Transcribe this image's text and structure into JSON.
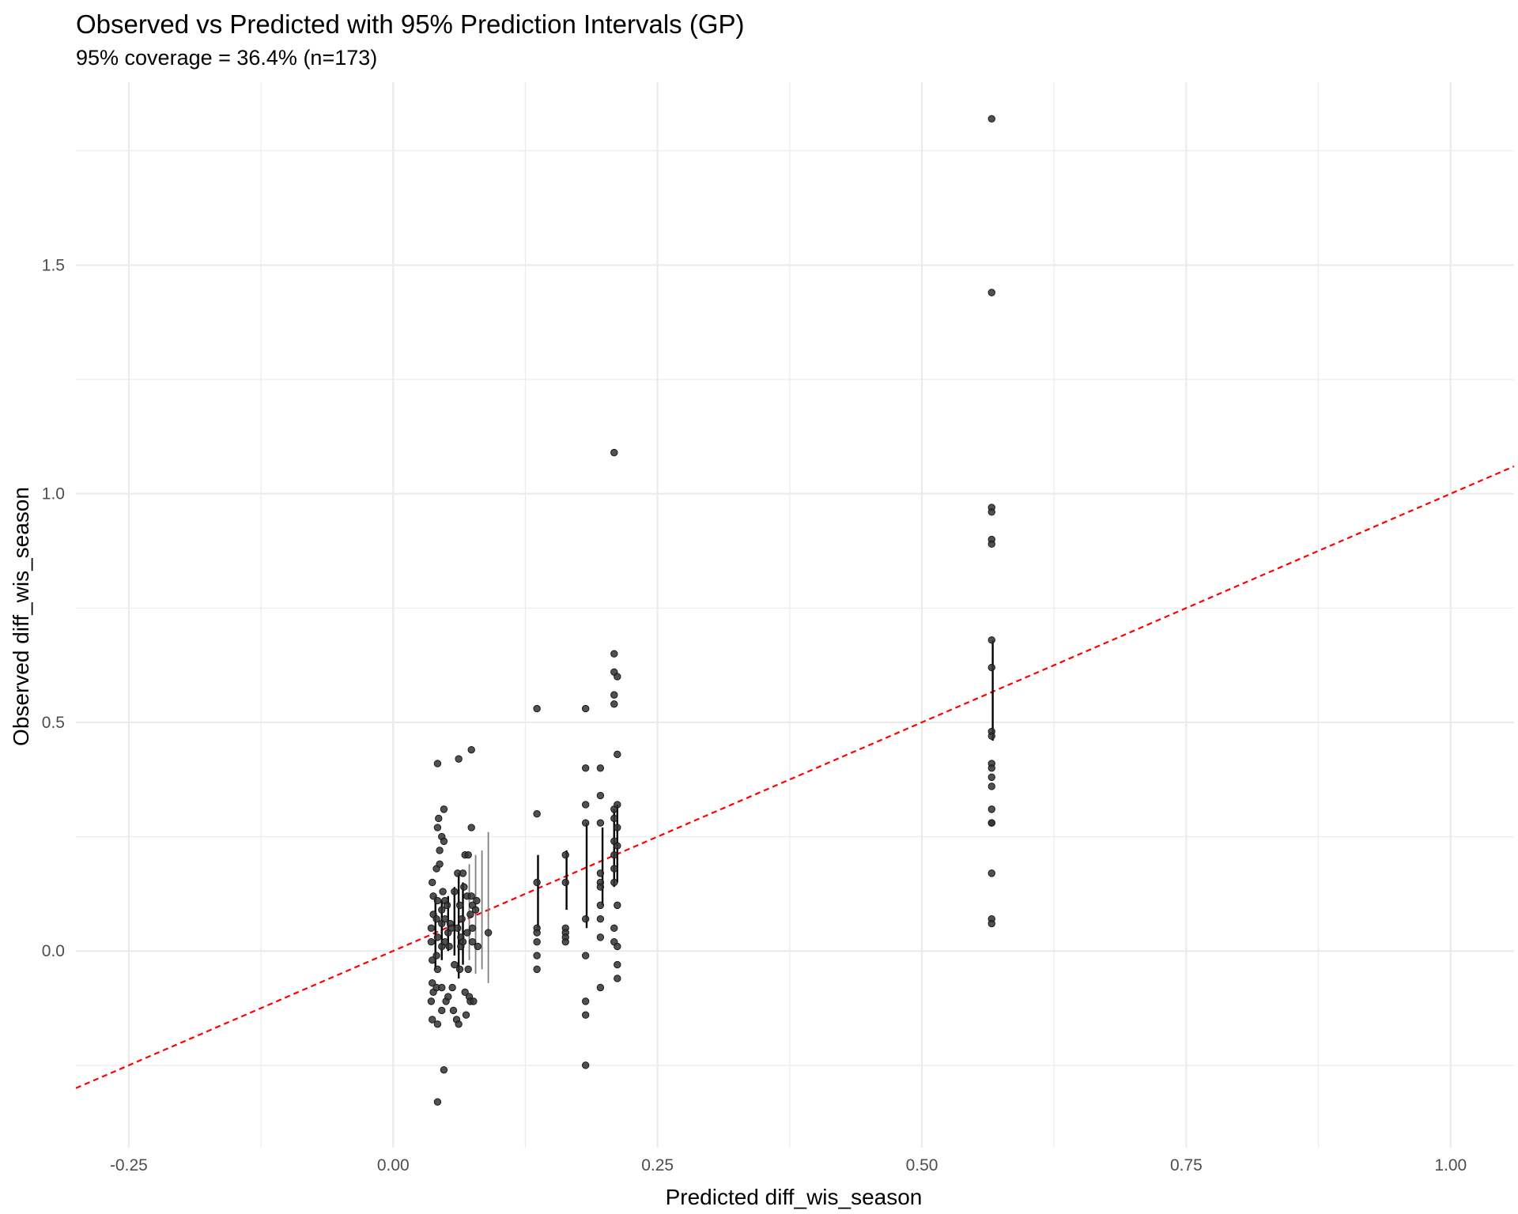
{
  "chart_data": {
    "type": "scatter",
    "title": "Observed vs Predicted with 95% Prediction Intervals (GP)",
    "subtitle": "95% coverage = 36.4% (n=173)",
    "xlabel": "Predicted diff_wis_season",
    "ylabel": "Observed diff_wis_season",
    "xlim": [
      -0.3,
      1.06
    ],
    "ylim": [
      -0.43,
      1.9
    ],
    "x_ticks": [
      -0.25,
      0.0,
      0.25,
      0.5,
      0.75,
      1.0
    ],
    "x_tick_labels": [
      "-0.25",
      "0.00",
      "0.25",
      "0.50",
      "0.75",
      "1.00"
    ],
    "y_ticks": [
      0.0,
      0.5,
      1.0,
      1.5
    ],
    "y_tick_labels": [
      "0.0",
      "0.5",
      "1.0",
      "1.5"
    ],
    "grid": true,
    "reference_line": {
      "type": "identity",
      "slope": 1,
      "intercept": 0,
      "color": "#ff0000",
      "style": "dashed"
    },
    "colors": {
      "points": "#333333",
      "interval_dark": "#000000",
      "interval_light": "#7f7f7f",
      "grid": "#ebebeb"
    },
    "intervals": [
      {
        "x": 0.04,
        "lo": -0.04,
        "hi": 0.12,
        "shade": "dark"
      },
      {
        "x": 0.046,
        "lo": -0.02,
        "hi": 0.11,
        "shade": "dark"
      },
      {
        "x": 0.052,
        "lo": 0.0,
        "hi": 0.12,
        "shade": "dark"
      },
      {
        "x": 0.058,
        "lo": -0.01,
        "hi": 0.14,
        "shade": "dark"
      },
      {
        "x": 0.062,
        "lo": -0.06,
        "hi": 0.17,
        "shade": "dark"
      },
      {
        "x": 0.066,
        "lo": -0.03,
        "hi": 0.15,
        "shade": "dark"
      },
      {
        "x": 0.072,
        "lo": -0.02,
        "hi": 0.19,
        "shade": "light"
      },
      {
        "x": 0.078,
        "lo": -0.05,
        "hi": 0.21,
        "shade": "light"
      },
      {
        "x": 0.084,
        "lo": -0.04,
        "hi": 0.22,
        "shade": "light"
      },
      {
        "x": 0.09,
        "lo": -0.07,
        "hi": 0.26,
        "shade": "light"
      },
      {
        "x": 0.137,
        "lo": 0.05,
        "hi": 0.21,
        "shade": "dark"
      },
      {
        "x": 0.164,
        "lo": 0.09,
        "hi": 0.22,
        "shade": "dark"
      },
      {
        "x": 0.183,
        "lo": 0.05,
        "hi": 0.28,
        "shade": "dark"
      },
      {
        "x": 0.198,
        "lo": 0.1,
        "hi": 0.27,
        "shade": "dark"
      },
      {
        "x": 0.209,
        "lo": 0.14,
        "hi": 0.31,
        "shade": "dark"
      },
      {
        "x": 0.212,
        "lo": 0.15,
        "hi": 0.32,
        "shade": "dark"
      },
      {
        "x": 0.567,
        "lo": 0.46,
        "hi": 0.68,
        "shade": "dark"
      }
    ],
    "points": [
      {
        "x": 0.038,
        "y": 0.08
      },
      {
        "x": 0.037,
        "y": 0.15
      },
      {
        "x": 0.036,
        "y": 0.05
      },
      {
        "x": 0.037,
        "y": -0.07
      },
      {
        "x": 0.036,
        "y": -0.11
      },
      {
        "x": 0.037,
        "y": -0.15
      },
      {
        "x": 0.038,
        "y": -0.09
      },
      {
        "x": 0.036,
        "y": 0.02
      },
      {
        "x": 0.037,
        "y": -0.02
      },
      {
        "x": 0.038,
        "y": 0.12
      },
      {
        "x": 0.041,
        "y": 0.18
      },
      {
        "x": 0.042,
        "y": 0.27
      },
      {
        "x": 0.042,
        "y": 0.41
      },
      {
        "x": 0.042,
        "y": 0.11
      },
      {
        "x": 0.041,
        "y": 0.07
      },
      {
        "x": 0.042,
        "y": 0.03
      },
      {
        "x": 0.041,
        "y": -0.01
      },
      {
        "x": 0.042,
        "y": -0.04
      },
      {
        "x": 0.041,
        "y": -0.08
      },
      {
        "x": 0.042,
        "y": -0.16
      },
      {
        "x": 0.042,
        "y": -0.33
      },
      {
        "x": 0.043,
        "y": 0.29
      },
      {
        "x": 0.044,
        "y": 0.22
      },
      {
        "x": 0.044,
        "y": 0.19
      },
      {
        "x": 0.046,
        "y": 0.25
      },
      {
        "x": 0.046,
        "y": 0.09
      },
      {
        "x": 0.046,
        "y": 0.06
      },
      {
        "x": 0.046,
        "y": 0.01
      },
      {
        "x": 0.046,
        "y": -0.08
      },
      {
        "x": 0.046,
        "y": -0.13
      },
      {
        "x": 0.047,
        "y": 0.13
      },
      {
        "x": 0.048,
        "y": 0.31
      },
      {
        "x": 0.048,
        "y": 0.24
      },
      {
        "x": 0.048,
        "y": -0.26
      },
      {
        "x": 0.049,
        "y": 0.11
      },
      {
        "x": 0.049,
        "y": 0.07
      },
      {
        "x": 0.049,
        "y": 0.02
      },
      {
        "x": 0.05,
        "y": -0.11
      },
      {
        "x": 0.051,
        "y": 0.1
      },
      {
        "x": 0.052,
        "y": 0.04
      },
      {
        "x": 0.052,
        "y": -0.1
      },
      {
        "x": 0.053,
        "y": 0.01
      },
      {
        "x": 0.054,
        "y": 0.06
      },
      {
        "x": 0.055,
        "y": 0.05
      },
      {
        "x": 0.056,
        "y": -0.08
      },
      {
        "x": 0.057,
        "y": -0.13
      },
      {
        "x": 0.058,
        "y": 0.13
      },
      {
        "x": 0.058,
        "y": -0.03
      },
      {
        "x": 0.06,
        "y": -0.15
      },
      {
        "x": 0.061,
        "y": 0.17
      },
      {
        "x": 0.061,
        "y": 0.05
      },
      {
        "x": 0.062,
        "y": -0.16
      },
      {
        "x": 0.062,
        "y": 0.42
      },
      {
        "x": 0.063,
        "y": 0.1
      },
      {
        "x": 0.063,
        "y": -0.04
      },
      {
        "x": 0.064,
        "y": 0.03
      },
      {
        "x": 0.064,
        "y": 0.01
      },
      {
        "x": 0.065,
        "y": 0.07
      },
      {
        "x": 0.066,
        "y": 0.17
      },
      {
        "x": 0.066,
        "y": 0.02
      },
      {
        "x": 0.067,
        "y": 0.14
      },
      {
        "x": 0.068,
        "y": -0.09
      },
      {
        "x": 0.068,
        "y": 0.21
      },
      {
        "x": 0.069,
        "y": -0.14
      },
      {
        "x": 0.07,
        "y": 0.12
      },
      {
        "x": 0.07,
        "y": 0.04
      },
      {
        "x": 0.071,
        "y": 0.21
      },
      {
        "x": 0.071,
        "y": -0.04
      },
      {
        "x": 0.072,
        "y": -0.1
      },
      {
        "x": 0.073,
        "y": 0.08
      },
      {
        "x": 0.073,
        "y": -0.11
      },
      {
        "x": 0.074,
        "y": 0.44
      },
      {
        "x": 0.074,
        "y": 0.27
      },
      {
        "x": 0.074,
        "y": 0.12
      },
      {
        "x": 0.075,
        "y": 0.1
      },
      {
        "x": 0.075,
        "y": 0.05
      },
      {
        "x": 0.075,
        "y": 0.02
      },
      {
        "x": 0.076,
        "y": -0.11
      },
      {
        "x": 0.078,
        "y": 0.09
      },
      {
        "x": 0.079,
        "y": 0.11
      },
      {
        "x": 0.08,
        "y": 0.01
      },
      {
        "x": 0.09,
        "y": 0.04
      },
      {
        "x": 0.136,
        "y": 0.53
      },
      {
        "x": 0.136,
        "y": 0.3
      },
      {
        "x": 0.136,
        "y": 0.15
      },
      {
        "x": 0.136,
        "y": 0.05
      },
      {
        "x": 0.136,
        "y": 0.04
      },
      {
        "x": 0.136,
        "y": 0.02
      },
      {
        "x": 0.136,
        "y": -0.01
      },
      {
        "x": 0.136,
        "y": -0.04
      },
      {
        "x": 0.163,
        "y": 0.21
      },
      {
        "x": 0.163,
        "y": 0.15
      },
      {
        "x": 0.163,
        "y": 0.05
      },
      {
        "x": 0.163,
        "y": 0.04
      },
      {
        "x": 0.163,
        "y": 0.03
      },
      {
        "x": 0.163,
        "y": 0.02
      },
      {
        "x": 0.182,
        "y": 0.53
      },
      {
        "x": 0.182,
        "y": 0.4
      },
      {
        "x": 0.182,
        "y": 0.32
      },
      {
        "x": 0.182,
        "y": 0.28
      },
      {
        "x": 0.182,
        "y": 0.07
      },
      {
        "x": 0.182,
        "y": -0.01
      },
      {
        "x": 0.182,
        "y": -0.11
      },
      {
        "x": 0.182,
        "y": -0.14
      },
      {
        "x": 0.182,
        "y": -0.25
      },
      {
        "x": 0.196,
        "y": 0.4
      },
      {
        "x": 0.196,
        "y": 0.34
      },
      {
        "x": 0.196,
        "y": 0.28
      },
      {
        "x": 0.196,
        "y": 0.17
      },
      {
        "x": 0.196,
        "y": 0.15
      },
      {
        "x": 0.196,
        "y": 0.14
      },
      {
        "x": 0.196,
        "y": 0.1
      },
      {
        "x": 0.196,
        "y": 0.07
      },
      {
        "x": 0.196,
        "y": 0.03
      },
      {
        "x": 0.196,
        "y": -0.08
      },
      {
        "x": 0.209,
        "y": 1.09
      },
      {
        "x": 0.209,
        "y": 0.65
      },
      {
        "x": 0.209,
        "y": 0.61
      },
      {
        "x": 0.209,
        "y": 0.56
      },
      {
        "x": 0.209,
        "y": 0.54
      },
      {
        "x": 0.209,
        "y": 0.31
      },
      {
        "x": 0.209,
        "y": 0.29
      },
      {
        "x": 0.209,
        "y": 0.24
      },
      {
        "x": 0.209,
        "y": 0.21
      },
      {
        "x": 0.209,
        "y": 0.18
      },
      {
        "x": 0.209,
        "y": 0.15
      },
      {
        "x": 0.209,
        "y": 0.05
      },
      {
        "x": 0.209,
        "y": 0.02
      },
      {
        "x": 0.212,
        "y": 0.6
      },
      {
        "x": 0.212,
        "y": 0.43
      },
      {
        "x": 0.212,
        "y": 0.32
      },
      {
        "x": 0.212,
        "y": 0.27
      },
      {
        "x": 0.212,
        "y": 0.23
      },
      {
        "x": 0.212,
        "y": 0.1
      },
      {
        "x": 0.212,
        "y": 0.01
      },
      {
        "x": 0.212,
        "y": -0.03
      },
      {
        "x": 0.212,
        "y": -0.06
      },
      {
        "x": 0.566,
        "y": 1.82
      },
      {
        "x": 0.566,
        "y": 1.44
      },
      {
        "x": 0.566,
        "y": 0.97
      },
      {
        "x": 0.566,
        "y": 0.96
      },
      {
        "x": 0.566,
        "y": 0.9
      },
      {
        "x": 0.566,
        "y": 0.89
      },
      {
        "x": 0.566,
        "y": 0.68
      },
      {
        "x": 0.566,
        "y": 0.62
      },
      {
        "x": 0.566,
        "y": 0.48
      },
      {
        "x": 0.566,
        "y": 0.47
      },
      {
        "x": 0.566,
        "y": 0.41
      },
      {
        "x": 0.566,
        "y": 0.4
      },
      {
        "x": 0.566,
        "y": 0.38
      },
      {
        "x": 0.566,
        "y": 0.36
      },
      {
        "x": 0.566,
        "y": 0.31
      },
      {
        "x": 0.566,
        "y": 0.28
      },
      {
        "x": 0.566,
        "y": 0.28
      },
      {
        "x": 0.566,
        "y": 0.17
      },
      {
        "x": 0.566,
        "y": 0.07
      },
      {
        "x": 0.566,
        "y": 0.06
      }
    ]
  }
}
